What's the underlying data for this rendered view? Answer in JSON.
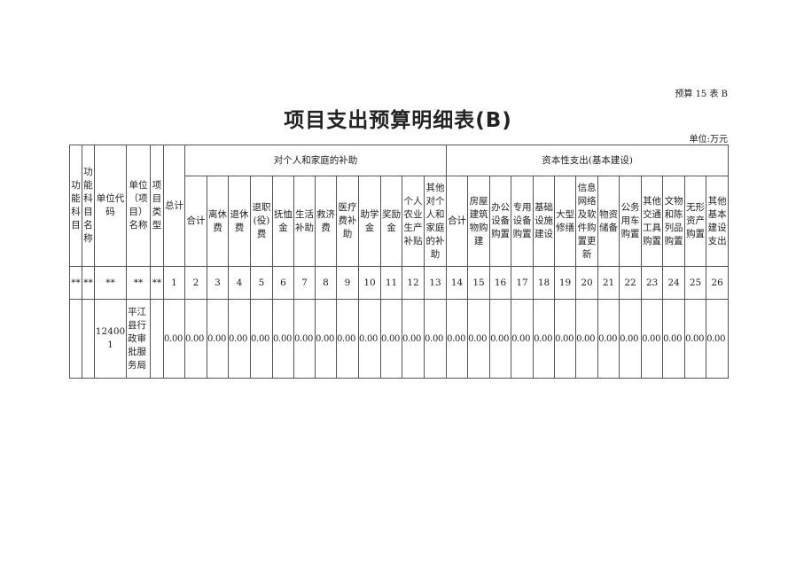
{
  "doc_code": "预算 15 表 B",
  "title": "项目支出预算明细表(B)",
  "unit": "单位:万元",
  "table": {
    "fixed_headers": [
      "功能科目",
      "功能科目名称",
      "单位代码",
      "单位（项目）名称",
      "项目类型",
      "总计"
    ],
    "group1": {
      "label": "对个人和家庭的补助",
      "columns": [
        "合计",
        "离休费",
        "退休费",
        "退职(役)费",
        "抚恤金",
        "生活补助",
        "救济费",
        "医疗费补助",
        "助学金",
        "奖励金",
        "个人农业生产补贴",
        "其他对个人和家庭的补助"
      ]
    },
    "group2": {
      "label": "资本性支出(基本建设)",
      "columns": [
        "合计",
        "房屋建筑物购建",
        "办公设备购置",
        "专用设备购置",
        "基础设施建设",
        "大型修缮",
        "信息网络及软件购置更新",
        "物资储备",
        "公务用车购置",
        "其他交通工具购置",
        "文物和陈列品购置",
        "无形资产购置",
        "其他基本建设支出"
      ]
    },
    "index_row": [
      "**",
      "**",
      "**",
      "**",
      "**",
      "1",
      "2",
      "3",
      "4",
      "5",
      "6",
      "7",
      "8",
      "9",
      "10",
      "11",
      "12",
      "13",
      "14",
      "15",
      "16",
      "17",
      "18",
      "19",
      "20",
      "21",
      "22",
      "23",
      "24",
      "25",
      "26"
    ],
    "rows": [
      {
        "func_code": "",
        "func_name": "",
        "unit_code": "124001",
        "unit_name": "平江县行政审批服务局",
        "project_type": "",
        "values": [
          "0.00",
          "0.00",
          "0.00",
          "0.00",
          "0.00",
          "0.00",
          "0.00",
          "0.00",
          "0.00",
          "0.00",
          "0.00",
          "0.00",
          "0.00",
          "0.00",
          "0.00",
          "0.00",
          "0.00",
          "0.00",
          "0.00",
          "0.00",
          "0.00",
          "0.00",
          "0.00",
          "0.00",
          "0.00",
          "0.00"
        ]
      }
    ]
  }
}
